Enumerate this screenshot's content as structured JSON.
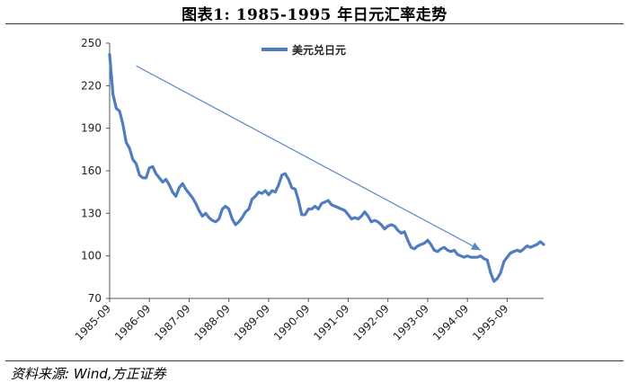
{
  "title": "图表1:   1985-1995 年日元汇率走势",
  "source": "资料来源: Wind,方正证券",
  "colors": {
    "series": "#4f7dbf",
    "arrow": "#5b86c4",
    "axis": "#555555"
  },
  "chart_data": {
    "type": "line",
    "title": "图表1:   1985-1995 年日元汇率走势",
    "xlabel": "",
    "ylabel": "",
    "ylim": [
      70,
      250
    ],
    "yticks": [
      70,
      100,
      130,
      160,
      190,
      220,
      250
    ],
    "xlim": [
      "1985-09",
      "1996-08"
    ],
    "xticks": [
      "1985-09",
      "1986-09",
      "1987-09",
      "1988-09",
      "1989-09",
      "1990-09",
      "1991-09",
      "1992-09",
      "1993-09",
      "1994-09",
      "1995-09"
    ],
    "grid": false,
    "legend_position": "top-center",
    "series": [
      {
        "name": "美元兑日元",
        "x": [
          "1985-09",
          "1985-10",
          "1985-11",
          "1985-12",
          "1986-01",
          "1986-02",
          "1986-03",
          "1986-04",
          "1986-05",
          "1986-06",
          "1986-07",
          "1986-08",
          "1986-09",
          "1986-10",
          "1986-11",
          "1986-12",
          "1987-01",
          "1987-02",
          "1987-03",
          "1987-04",
          "1987-05",
          "1987-06",
          "1987-07",
          "1987-08",
          "1987-09",
          "1987-10",
          "1987-11",
          "1987-12",
          "1988-01",
          "1988-02",
          "1988-03",
          "1988-04",
          "1988-05",
          "1988-06",
          "1988-07",
          "1988-08",
          "1988-09",
          "1988-10",
          "1988-11",
          "1988-12",
          "1989-01",
          "1989-02",
          "1989-03",
          "1989-04",
          "1989-05",
          "1989-06",
          "1989-07",
          "1989-08",
          "1989-09",
          "1989-10",
          "1989-11",
          "1989-12",
          "1990-01",
          "1990-02",
          "1990-03",
          "1990-04",
          "1990-05",
          "1990-06",
          "1990-07",
          "1990-08",
          "1990-09",
          "1990-10",
          "1990-11",
          "1990-12",
          "1991-01",
          "1991-02",
          "1991-03",
          "1991-04",
          "1991-05",
          "1991-06",
          "1991-07",
          "1991-08",
          "1991-09",
          "1991-10",
          "1991-11",
          "1991-12",
          "1992-01",
          "1992-02",
          "1992-03",
          "1992-04",
          "1992-05",
          "1992-06",
          "1992-07",
          "1992-08",
          "1992-09",
          "1992-10",
          "1992-11",
          "1992-12",
          "1993-01",
          "1993-02",
          "1993-03",
          "1993-04",
          "1993-05",
          "1993-06",
          "1993-07",
          "1993-08",
          "1993-09",
          "1993-10",
          "1993-11",
          "1993-12",
          "1994-01",
          "1994-02",
          "1994-03",
          "1994-04",
          "1994-05",
          "1994-06",
          "1994-07",
          "1994-08",
          "1994-09",
          "1994-10",
          "1994-11",
          "1994-12",
          "1995-01",
          "1995-02",
          "1995-03",
          "1995-04",
          "1995-05",
          "1995-06",
          "1995-07",
          "1995-08",
          "1995-09",
          "1995-10",
          "1995-11",
          "1995-12",
          "1996-01",
          "1996-02",
          "1996-03",
          "1996-04",
          "1996-05",
          "1996-06",
          "1996-07",
          "1996-08"
        ],
        "values": [
          242,
          214,
          204,
          202,
          193,
          180,
          176,
          168,
          165,
          157,
          155,
          155,
          162,
          163,
          158,
          155,
          152,
          154,
          150,
          145,
          142,
          148,
          151,
          147,
          144,
          141,
          137,
          132,
          128,
          130,
          127,
          125,
          124,
          126,
          133,
          135,
          133,
          126,
          122,
          124,
          127,
          131,
          133,
          140,
          142,
          145,
          144,
          146,
          143,
          146,
          145,
          150,
          157,
          158,
          154,
          148,
          147,
          139,
          129,
          129,
          133,
          133,
          135,
          133,
          137,
          138,
          139,
          136,
          135,
          134,
          133,
          132,
          129,
          126,
          127,
          126,
          128,
          131,
          128,
          124,
          125,
          124,
          122,
          119,
          121,
          122,
          121,
          118,
          116,
          117,
          111,
          106,
          105,
          107,
          108,
          109,
          111,
          108,
          104,
          103,
          105,
          106,
          104,
          103,
          104,
          101,
          100,
          99,
          100,
          99,
          99,
          99,
          100,
          98,
          97,
          88,
          82,
          84,
          88,
          96,
          99,
          102,
          103,
          104,
          103,
          105,
          107,
          106,
          107,
          108,
          110,
          108
        ]
      }
    ],
    "annotations": [
      {
        "type": "arrow",
        "from": [
          "1986-05",
          234
        ],
        "to": [
          "1995-01",
          104
        ]
      }
    ]
  }
}
